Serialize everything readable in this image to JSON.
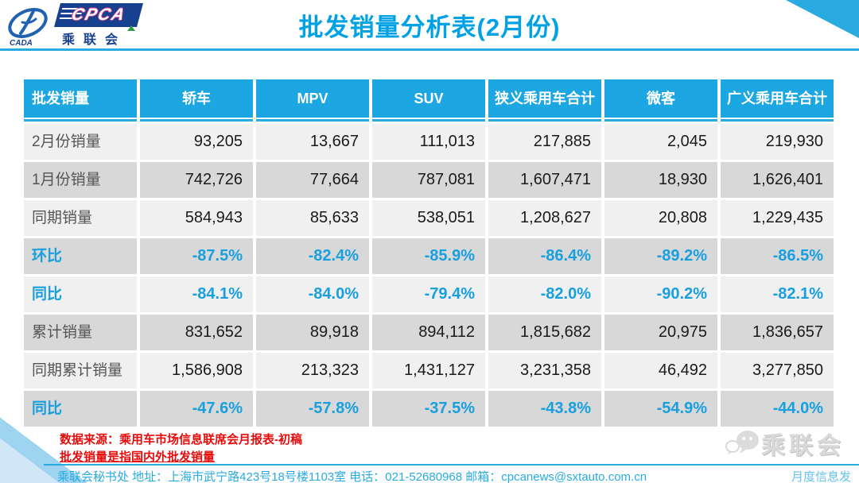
{
  "header": {
    "title": "批发销量分析表(2月份)",
    "logo": {
      "cpca": "CPCA",
      "cada": "CADA",
      "cn_name": "乘联会"
    }
  },
  "chart_data": {
    "type": "table",
    "title": "批发销量分析表(2月份)",
    "columns": [
      "批发销量",
      "轿车",
      "MPV",
      "SUV",
      "狭义乘用车合计",
      "微客",
      "广义乘用车合计"
    ],
    "rows": [
      {
        "label": "2月份销量",
        "type": "number",
        "values": [
          "93,205",
          "13,667",
          "111,013",
          "217,885",
          "2,045",
          "219,930"
        ]
      },
      {
        "label": "1月份销量",
        "type": "number",
        "values": [
          "742,726",
          "77,664",
          "787,081",
          "1,607,471",
          "18,930",
          "1,626,401"
        ]
      },
      {
        "label": "同期销量",
        "type": "number",
        "values": [
          "584,943",
          "85,633",
          "538,051",
          "1,208,627",
          "20,808",
          "1,229,435"
        ]
      },
      {
        "label": "环比",
        "type": "percent",
        "values": [
          "-87.5%",
          "-82.4%",
          "-85.9%",
          "-86.4%",
          "-89.2%",
          "-86.5%"
        ]
      },
      {
        "label": "同比",
        "type": "percent",
        "values": [
          "-84.1%",
          "-84.0%",
          "-79.4%",
          "-82.0%",
          "-90.2%",
          "-82.1%"
        ]
      },
      {
        "label": "累计销量",
        "type": "number",
        "values": [
          "831,652",
          "89,918",
          "894,112",
          "1,815,682",
          "20,975",
          "1,836,657"
        ]
      },
      {
        "label": "同期累计销量",
        "type": "number",
        "values": [
          "1,586,908",
          "213,323",
          "1,431,127",
          "3,231,358",
          "46,492",
          "3,277,850"
        ]
      },
      {
        "label": "同比",
        "type": "percent",
        "values": [
          "-47.6%",
          "-57.8%",
          "-37.5%",
          "-43.8%",
          "-54.9%",
          "-44.0%"
        ]
      }
    ]
  },
  "footnotes": {
    "source": "数据来源：乘用车市场信息联席会月报表-初稿",
    "note": "批发销量是指国内外批发销量"
  },
  "footer": {
    "contact": "乘联会秘书处  地址：上海市武宁路423号18号楼1103室 电话：021-52680968  邮箱：cpcanews@sxtauto.com.cn",
    "tagline": "月度信息发",
    "watermark": "乘联会"
  },
  "colors": {
    "accent_blue": "#29abe2",
    "header_blue": "#1ca7e2",
    "title_blue": "#00a2e4",
    "percent_blue": "#189fdd",
    "row_light": "#f0f0f0",
    "row_dark": "#d8d8d8",
    "footnote_red": "#e60c0c",
    "logo_navy": "#17418f",
    "logo_pink": "#e0418c",
    "logo_green": "#2e9e46"
  }
}
